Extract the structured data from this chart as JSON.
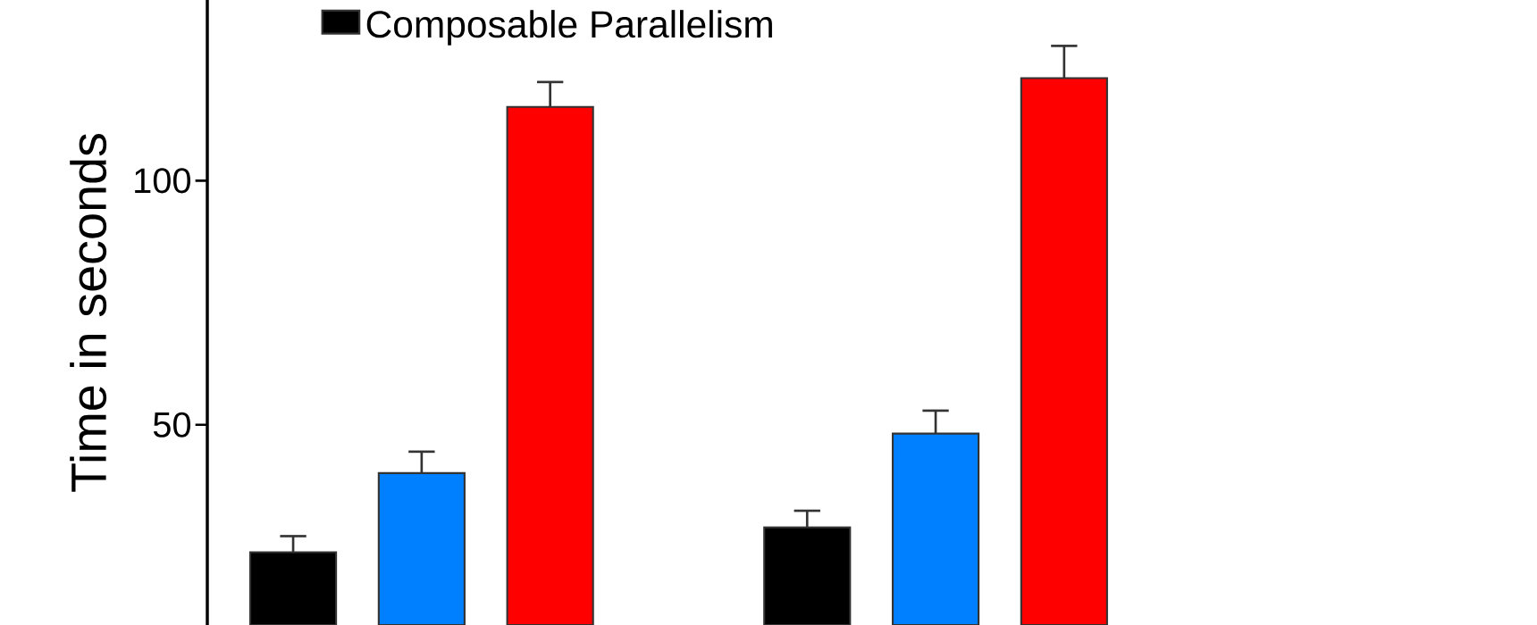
{
  "chart_data": {
    "type": "bar",
    "ylabel": "Time in seconds",
    "categories": [
      null,
      null
    ],
    "series": [
      {
        "name": "Composable Parallelism",
        "color": "#000000",
        "values": [
          23.9,
          29.0
        ],
        "errors": [
          3.3,
          3.4
        ]
      },
      {
        "color": "#0080ff",
        "values": [
          40.1,
          48.2
        ],
        "errors": [
          4.4,
          4.7
        ]
      },
      {
        "color": "#ff0000",
        "values": [
          115.1,
          121.0
        ],
        "errors": [
          5.1,
          6.6
        ]
      }
    ],
    "ylim": [
      9,
      137
    ],
    "yticks": [
      50,
      100
    ],
    "legend": "top"
  }
}
